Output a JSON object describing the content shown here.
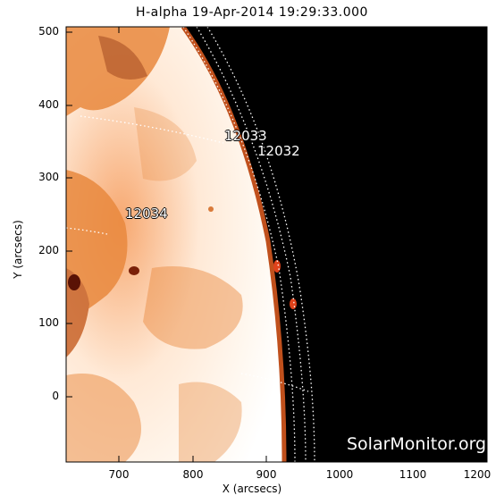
{
  "title": "H-alpha 19-Apr-2014 19:29:33.000",
  "axes": {
    "xlabel": "X (arcsecs)",
    "ylabel": "Y (arcsecs)",
    "xticks": [
      "700",
      "800",
      "900",
      "1000",
      "1100",
      "1200"
    ],
    "yticks": [
      "0",
      "100",
      "200",
      "300",
      "400",
      "500"
    ]
  },
  "regions": [
    {
      "label": "12033"
    },
    {
      "label": "12032"
    },
    {
      "label": "12034"
    }
  ],
  "credit": "SolarMonitor.org",
  "colors": {
    "disk_bright": "#fff3e8",
    "disk_orange": "#e88a3c",
    "dark_spot": "#5a1205",
    "sky": "#000000"
  }
}
